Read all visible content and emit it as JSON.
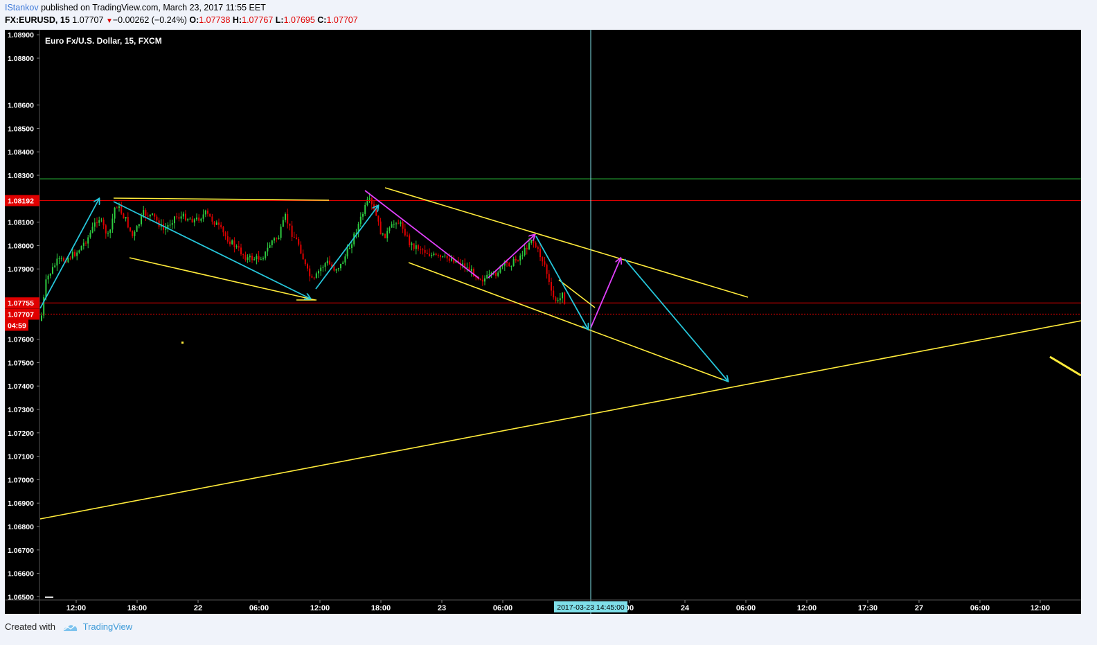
{
  "header": {
    "author": "IStankov",
    "published_text": " published on TradingView.com, March 23, 2017 11:55 EET",
    "symbol": "FX:EURUSD, 15",
    "last": "1.07707",
    "change": "−0.00262 (−0.24%)",
    "o_label": "O:",
    "o_value": "1.07738",
    "h_label": "H:",
    "h_value": "1.07767",
    "l_label": "L:",
    "l_value": "1.07695",
    "c_label": "C:",
    "c_value": "1.07707"
  },
  "footer": {
    "created_with": "Created with",
    "brand": "TradingView"
  },
  "chart_data": {
    "type": "candlestick",
    "title": "Euro Fx/U.S. Dollar, 15, FXCM",
    "ylim": [
      1.0648,
      1.0891
    ],
    "y_ticks": [
      "1.08900",
      "1.08800",
      "1.08600",
      "1.08500",
      "1.08400",
      "1.08300",
      "1.08200",
      "1.08100",
      "1.08000",
      "1.07900",
      "1.07600",
      "1.07500",
      "1.07400",
      "1.07300",
      "1.07200",
      "1.07100",
      "1.07000",
      "1.06900",
      "1.06800",
      "1.06700",
      "1.06600",
      "1.06500"
    ],
    "y_tick_values": [
      1.089,
      1.088,
      1.086,
      1.085,
      1.084,
      1.083,
      1.082,
      1.081,
      1.08,
      1.079,
      1.076,
      1.075,
      1.074,
      1.073,
      1.072,
      1.071,
      1.07,
      1.069,
      1.068,
      1.067,
      1.066,
      1.065
    ],
    "price_badges": [
      {
        "label": "1.08192",
        "value": 1.08192,
        "color": "#e00000"
      },
      {
        "label": "1.07755",
        "value": 1.07755,
        "color": "#e00000"
      },
      {
        "label": "1.07707",
        "value": 1.07707,
        "color": "#e00000"
      }
    ],
    "countdown": "04:59",
    "x_ticks": [
      "12:00",
      "18:00",
      "22",
      "06:00",
      "12:00",
      "18:00",
      "23",
      "06:00",
      "00",
      "24",
      "06:00",
      "12:00",
      "17:30",
      "27",
      "06:00",
      "12:00"
    ],
    "crosshair_label": "2017-03-23 14:45:00",
    "horizontal_lines": [
      {
        "value": 1.08285,
        "color": "#2ecc40",
        "style": "solid"
      },
      {
        "value": 1.08192,
        "color": "#e00000",
        "style": "solid"
      },
      {
        "value": 1.07755,
        "color": "#e00000",
        "style": "solid"
      },
      {
        "value": 1.07707,
        "color": "#e00000",
        "style": "dotted"
      }
    ],
    "colors": {
      "up": "#2ecc40",
      "down": "#e00000",
      "trend": "#ffeb3b",
      "arrow_cyan": "#26c6da",
      "arrow_magenta": "#e040fb",
      "crosshair": "#7fdfe9",
      "axis_text": "#ffffff"
    }
  }
}
